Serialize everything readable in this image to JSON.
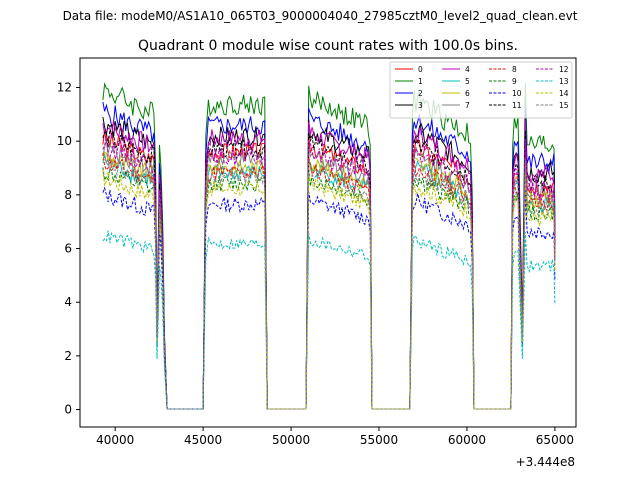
{
  "chart_data": {
    "type": "line",
    "suptitle": "Data file: modeM0/AS1A10_065T03_9000004040_27985cztM0_level2_quad_clean.evt",
    "title": "Quadrant 0 module wise count rates with 100.0s bins.",
    "xlabel": "",
    "ylabel": "",
    "x_offset_label": "+3.444e8",
    "xlim": [
      38000,
      66200
    ],
    "ylim": [
      -0.65,
      13.1
    ],
    "x_ticks": [
      40000,
      45000,
      50000,
      55000,
      60000,
      65000
    ],
    "y_ticks": [
      0,
      2,
      4,
      6,
      8,
      10,
      12
    ],
    "legend_position": "top-right",
    "orbits": [
      {
        "on": [
          39300,
          42300
        ],
        "dip": [
          42300,
          42500
        ],
        "spike": [
          42500,
          42900
        ],
        "off": [
          43000,
          45000
        ]
      },
      {
        "on": [
          45000,
          48600
        ],
        "dip": [
          48600,
          48800
        ],
        "spike": [
          48800,
          48850
        ],
        "off": [
          48800,
          50900
        ]
      },
      {
        "on": [
          51000,
          54500
        ],
        "dip": [
          54500,
          54600
        ],
        "spike": [
          54600,
          54650
        ],
        "off": [
          54600,
          56800
        ]
      },
      {
        "on": [
          56800,
          60300
        ],
        "dip": [
          60300,
          60400
        ],
        "spike": [
          60400,
          60450
        ],
        "off": [
          60400,
          62500
        ]
      },
      {
        "on": [
          62600,
          65000
        ],
        "dip": [
          63000,
          63200
        ],
        "spike": [
          63300,
          63500
        ],
        "off": [
          63100,
          63200
        ]
      }
    ],
    "series": [
      {
        "name": "0",
        "color": "#ff0000",
        "style": "solid",
        "level": 9.8
      },
      {
        "name": "1",
        "color": "#008000",
        "style": "solid",
        "level": 11.6
      },
      {
        "name": "2",
        "color": "#0000ff",
        "style": "solid",
        "level": 10.8
      },
      {
        "name": "3",
        "color": "#000000",
        "style": "solid",
        "level": 10.4
      },
      {
        "name": "4",
        "color": "#bf00bf",
        "style": "solid",
        "level": 10.3
      },
      {
        "name": "5",
        "color": "#00bfbf",
        "style": "solid",
        "level": 9.0
      },
      {
        "name": "6",
        "color": "#bfbf00",
        "style": "solid",
        "level": 9.2
      },
      {
        "name": "7",
        "color": "#808080",
        "style": "solid",
        "level": 9.5
      },
      {
        "name": "8",
        "color": "#ff0000",
        "style": "dashed",
        "level": 9.0
      },
      {
        "name": "9",
        "color": "#008000",
        "style": "dashed",
        "level": 8.6
      },
      {
        "name": "10",
        "color": "#0000ff",
        "style": "dashed",
        "level": 7.8
      },
      {
        "name": "11",
        "color": "#000000",
        "style": "dashed",
        "level": 9.9
      },
      {
        "name": "12",
        "color": "#bf00bf",
        "style": "dashed",
        "level": 9.6
      },
      {
        "name": "13",
        "color": "#00bfbf",
        "style": "dashed",
        "level": 6.3
      },
      {
        "name": "14",
        "color": "#bfbf00",
        "style": "dashed",
        "level": 8.4
      },
      {
        "name": "15",
        "color": "#808080",
        "style": "dashed",
        "level": 8.9
      }
    ]
  }
}
